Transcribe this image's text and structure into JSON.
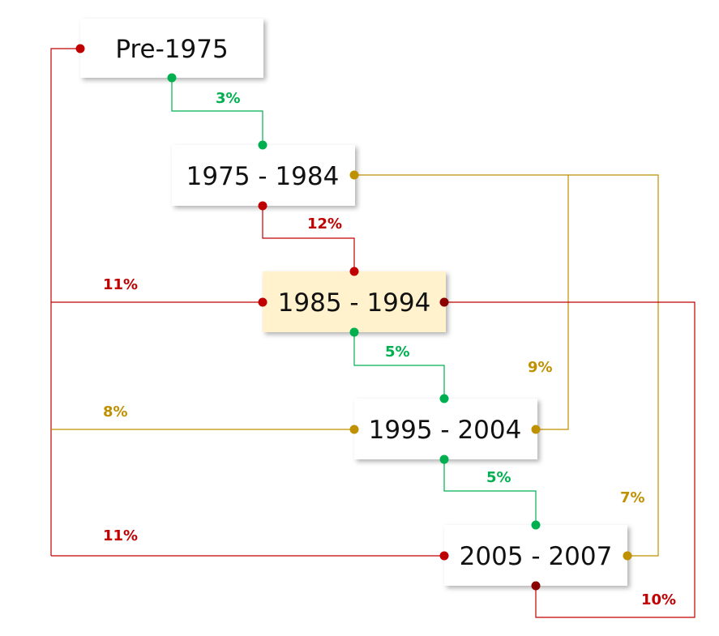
{
  "colors": {
    "green": "#00b050",
    "red": "#c00000",
    "dark_red": "#8b0000",
    "gold": "#bf9000",
    "highlight": "#fff2cc",
    "box": "#ffffff"
  },
  "periods": {
    "pre1975": "Pre-1975",
    "p1975": "1975 - 1984",
    "p1985": "1985 - 1994",
    "p1995": "1995 - 2004",
    "p2005": "2005 - 2007"
  },
  "highlighted_period": "1985 - 1994",
  "connections": [
    {
      "from": "Pre-1975",
      "to": "1975 - 1984",
      "label": "3%",
      "color": "green"
    },
    {
      "from": "1975 - 1984",
      "to": "1985 - 1994",
      "label": "12%",
      "color": "red"
    },
    {
      "from": "1985 - 1994",
      "to": "1995 - 2004",
      "label": "5%",
      "color": "green"
    },
    {
      "from": "1995 - 2004",
      "to": "2005 - 2007",
      "label": "5%",
      "color": "green"
    },
    {
      "from": "Pre-1975",
      "to": "1985 - 1994",
      "label": "11%",
      "color": "red"
    },
    {
      "from": "Pre-1975",
      "to": "1995 - 2004",
      "label": "8%",
      "color": "gold"
    },
    {
      "from": "Pre-1975",
      "to": "2005 - 2007",
      "label": "11%",
      "color": "red"
    },
    {
      "from": "1975 - 1984",
      "to": "1995 - 2004",
      "label": "9%",
      "color": "gold"
    },
    {
      "from": "1975 - 1984",
      "to": "2005 - 2007",
      "label": "7%",
      "color": "gold"
    },
    {
      "from": "1985 - 1994",
      "to": "2005 - 2007",
      "label": "10%",
      "color": "dark_red"
    }
  ]
}
